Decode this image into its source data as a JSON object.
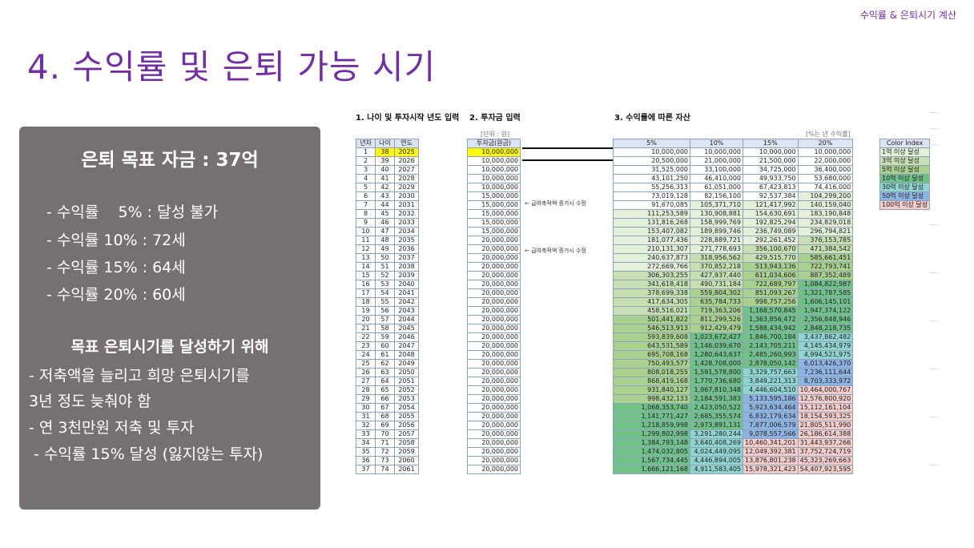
{
  "header": {
    "corner_label": "수익률 & 은퇴시기 계산",
    "title": "4. 수익률 및 은퇴 가능 시기"
  },
  "summary": {
    "title": "은퇴 목표 자금 : 37억",
    "rates": [
      "- 수익률    5% : 달성 불가",
      "- 수익률 10% : 72세",
      "- 수익률 15% : 64세",
      "- 수익률 20% : 60세"
    ],
    "subtitle": "목표 은퇴시기를 달성하기 위해",
    "notes": [
      "- 저축액을 늘리고 희망 은퇴시기를",
      "3년 정도 늦춰야 함",
      "- 연 3천만원 저축 및 투자",
      " - 수익률 15% 달성 (잃지않는 투자)"
    ]
  },
  "sheet": {
    "sec1": "1. 나이 및 투자시작 년도 입력",
    "sec2": "2. 투자금 입력",
    "sec3": "3. 수익률에 따른 자산",
    "unit_left": "[단위 : 원]",
    "unit_right": "[%는 년 수익률]",
    "memo1": "← 급여축적액 증가시 수정",
    "memo2": "← 급여축적액 증가시 수정",
    "headers": {
      "year_idx": "년차",
      "age": "나이",
      "year": "연도",
      "invest": "투자금(원금)",
      "r5": "5%",
      "r10": "10%",
      "r15": "15%",
      "r20": "20%"
    },
    "rows": [
      [
        "1",
        "38",
        "2025",
        "10,000,000",
        "10,000,000",
        "10,000,000",
        "10,000,000",
        "10,000,000"
      ],
      [
        "2",
        "39",
        "2026",
        "10,000,000",
        "20,500,000",
        "21,000,000",
        "21,500,000",
        "22,000,000"
      ],
      [
        "3",
        "40",
        "2027",
        "10,000,000",
        "31,525,000",
        "33,100,000",
        "34,725,000",
        "36,400,000"
      ],
      [
        "4",
        "41",
        "2028",
        "10,000,000",
        "43,101,250",
        "46,410,000",
        "49,933,750",
        "53,680,000"
      ],
      [
        "5",
        "42",
        "2029",
        "10,000,000",
        "55,256,313",
        "61,051,000",
        "67,423,813",
        "74,416,000"
      ],
      [
        "6",
        "43",
        "2030",
        "15,000,000",
        "73,019,128",
        "82,156,100",
        "92,537,384",
        "104,299,200"
      ],
      [
        "7",
        "44",
        "2031",
        "15,000,000",
        "91,670,085",
        "105,371,710",
        "121,417,992",
        "140,159,040"
      ],
      [
        "8",
        "45",
        "2032",
        "15,000,000",
        "111,253,589",
        "130,908,881",
        "154,630,691",
        "183,190,848"
      ],
      [
        "9",
        "46",
        "2033",
        "15,000,000",
        "131,816,268",
        "158,999,769",
        "192,825,294",
        "234,829,018"
      ],
      [
        "10",
        "47",
        "2034",
        "15,000,000",
        "153,407,082",
        "189,899,746",
        "236,749,089",
        "296,794,821"
      ],
      [
        "11",
        "48",
        "2035",
        "20,000,000",
        "181,077,436",
        "228,889,721",
        "292,261,452",
        "376,153,785"
      ],
      [
        "12",
        "49",
        "2036",
        "20,000,000",
        "210,131,307",
        "271,778,693",
        "356,100,670",
        "471,384,542"
      ],
      [
        "13",
        "50",
        "2037",
        "20,000,000",
        "240,637,873",
        "318,956,562",
        "429,515,770",
        "585,661,451"
      ],
      [
        "14",
        "51",
        "2038",
        "20,000,000",
        "272,669,766",
        "370,852,218",
        "513,943,136",
        "722,793,741"
      ],
      [
        "15",
        "52",
        "2039",
        "20,000,000",
        "306,303,255",
        "427,937,440",
        "611,034,606",
        "887,352,489"
      ],
      [
        "16",
        "53",
        "2040",
        "20,000,000",
        "341,618,418",
        "490,731,184",
        "722,689,797",
        "1,084,822,987"
      ],
      [
        "17",
        "54",
        "2041",
        "20,000,000",
        "378,699,338",
        "559,804,302",
        "851,093,267",
        "1,321,787,585"
      ],
      [
        "18",
        "55",
        "2042",
        "20,000,000",
        "417,634,305",
        "635,784,733",
        "998,757,256",
        "1,606,145,101"
      ],
      [
        "19",
        "56",
        "2043",
        "20,000,000",
        "458,516,021",
        "719,363,206",
        "1,168,570,845",
        "1,947,374,122"
      ],
      [
        "20",
        "57",
        "2044",
        "20,000,000",
        "501,441,822",
        "811,299,526",
        "1,363,856,472",
        "2,356,848,946"
      ],
      [
        "21",
        "58",
        "2045",
        "20,000,000",
        "546,513,913",
        "912,429,479",
        "1,588,434,942",
        "2,848,218,735"
      ],
      [
        "22",
        "59",
        "2046",
        "20,000,000",
        "593,839,608",
        "1,023,672,427",
        "1,846,700,184",
        "3,437,862,482"
      ],
      [
        "23",
        "60",
        "2047",
        "20,000,000",
        "643,531,589",
        "1,146,039,670",
        "2,143,705,211",
        "4,145,434,979"
      ],
      [
        "24",
        "61",
        "2048",
        "20,000,000",
        "695,708,168",
        "1,280,643,637",
        "2,485,260,993",
        "4,994,521,975"
      ],
      [
        "25",
        "62",
        "2049",
        "20,000,000",
        "750,493,577",
        "1,428,708,000",
        "2,878,050,142",
        "6,013,426,370"
      ],
      [
        "26",
        "63",
        "2050",
        "20,000,000",
        "808,018,255",
        "1,591,578,800",
        "3,329,757,663",
        "7,236,111,644"
      ],
      [
        "27",
        "64",
        "2051",
        "20,000,000",
        "868,419,168",
        "1,770,736,680",
        "3,849,221,313",
        "8,703,333,972"
      ],
      [
        "28",
        "65",
        "2052",
        "20,000,000",
        "931,840,127",
        "1,967,810,348",
        "4,446,604,510",
        "10,464,000,767"
      ],
      [
        "29",
        "66",
        "2053",
        "20,000,000",
        "998,432,133",
        "2,184,591,383",
        "5,133,595,186",
        "12,576,800,920"
      ],
      [
        "30",
        "67",
        "2054",
        "20,000,000",
        "1,068,353,740",
        "2,423,050,522",
        "5,923,634,464",
        "15,112,161,104"
      ],
      [
        "31",
        "68",
        "2055",
        "20,000,000",
        "1,141,771,427",
        "2,685,355,574",
        "6,832,179,634",
        "18,154,593,325"
      ],
      [
        "32",
        "69",
        "2056",
        "20,000,000",
        "1,218,859,998",
        "2,973,891,131",
        "7,877,006,579",
        "21,805,511,990"
      ],
      [
        "33",
        "70",
        "2057",
        "20,000,000",
        "1,299,802,998",
        "3,291,280,244",
        "9,078,557,566",
        "26,186,614,388"
      ],
      [
        "34",
        "71",
        "2058",
        "20,000,000",
        "1,384,793,148",
        "3,640,408,269",
        "10,460,341,201",
        "31,443,937,266"
      ],
      [
        "35",
        "72",
        "2059",
        "20,000,000",
        "1,474,032,805",
        "4,024,449,095",
        "12,049,392,381",
        "37,752,724,719"
      ],
      [
        "36",
        "73",
        "2060",
        "20,000,000",
        "1,567,734,445",
        "4,446,894,005",
        "13,876,801,238",
        "45,323,269,663"
      ],
      [
        "37",
        "74",
        "2061",
        "20,000,000",
        "1,666,121,168",
        "4,911,583,405",
        "15,978,321,423",
        "54,407,923,595"
      ]
    ],
    "color_index": {
      "title": "Color Index",
      "items": [
        "1억 이상 달성",
        "3억 이상 달성",
        "5억 이상 달성",
        "10억 이상 달성",
        "30억 이상 달성",
        "50억 이상 달성",
        "100억 이상 달성"
      ],
      "colors": [
        "#e2f0d9",
        "#c6e0b4",
        "#a9d08e",
        "#70c08a",
        "#8fd4d0",
        "#8eb4e3",
        "#f4cccc"
      ]
    }
  }
}
